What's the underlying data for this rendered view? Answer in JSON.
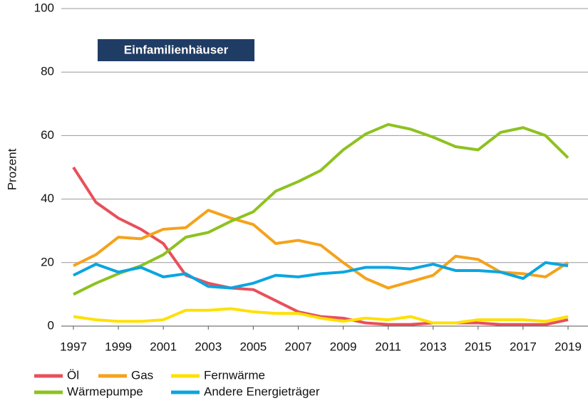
{
  "chart_data": {
    "type": "line",
    "title": "Einfamilienhäuser",
    "ylabel": "Prozent",
    "x": [
      1997,
      1998,
      1999,
      2000,
      2001,
      2002,
      2003,
      2004,
      2005,
      2006,
      2007,
      2008,
      2009,
      2010,
      2011,
      2012,
      2013,
      2014,
      2015,
      2016,
      2017,
      2018,
      2019
    ],
    "xlim": [
      1997,
      2019
    ],
    "xticks": [
      1997,
      1999,
      2001,
      2003,
      2005,
      2007,
      2009,
      2011,
      2013,
      2015,
      2017,
      2019
    ],
    "ylim": [
      0,
      100
    ],
    "yticks": [
      0,
      20,
      40,
      60,
      80,
      100
    ],
    "grid": true,
    "series": [
      {
        "name": "Öl",
        "color": "#e8505b",
        "values": [
          50,
          39,
          34,
          30.5,
          26,
          16,
          13.5,
          12,
          11.5,
          8,
          4.5,
          3,
          2.5,
          1,
          0.5,
          0.5,
          1,
          1,
          1,
          0.5,
          0.5,
          0.5,
          2
        ]
      },
      {
        "name": "Gas",
        "color": "#f5a21b",
        "values": [
          19,
          22.5,
          28,
          27.5,
          30.5,
          31,
          36.5,
          34,
          32,
          26,
          27,
          25.5,
          20,
          15,
          12,
          14,
          16,
          22,
          21,
          17,
          16.5,
          15.5,
          20
        ]
      },
      {
        "name": "Fernwärme",
        "color": "#ffe000",
        "values": [
          3,
          2,
          1.5,
          1.5,
          2,
          5,
          5,
          5.5,
          4.5,
          4,
          4,
          2.5,
          1.5,
          2.5,
          2,
          3,
          1,
          1,
          2,
          2,
          2,
          1.5,
          3
        ]
      },
      {
        "name": "Wärmepumpe",
        "color": "#8dc21f",
        "values": [
          10,
          13.5,
          16.5,
          19,
          22.5,
          28,
          29.5,
          33,
          36,
          42.5,
          45.5,
          49,
          55.5,
          60.5,
          63.5,
          62,
          59.5,
          56.5,
          55.5,
          61,
          62.5,
          60,
          53
        ]
      },
      {
        "name": "Andere Energieträger",
        "color": "#0ba5e0",
        "values": [
          16,
          19.5,
          17,
          18.5,
          15.5,
          16.5,
          12.5,
          12,
          13.5,
          16,
          15.5,
          16.5,
          17,
          18.5,
          18.5,
          18,
          19.5,
          17.5,
          17.5,
          17,
          15,
          20,
          19
        ]
      }
    ]
  }
}
